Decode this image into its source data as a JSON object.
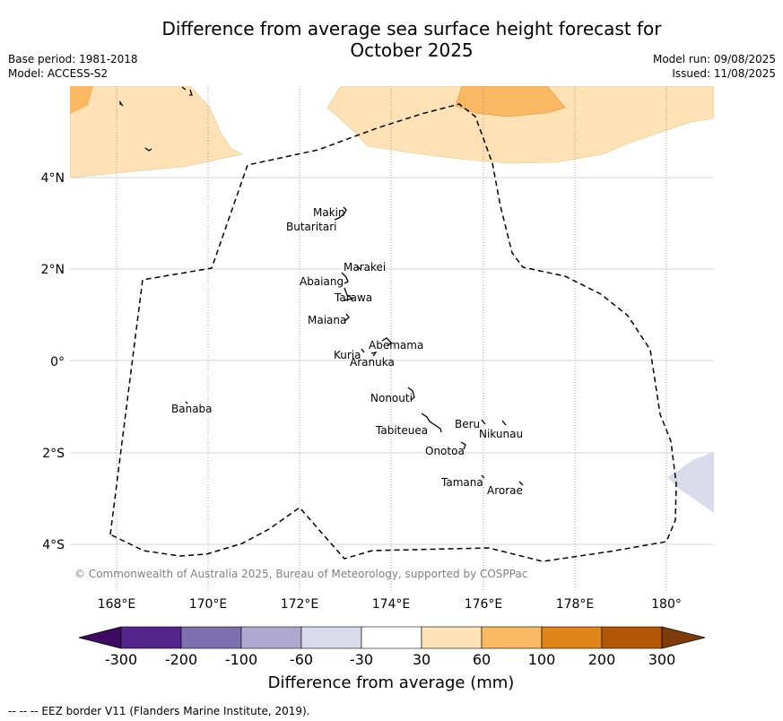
{
  "title": {
    "line1": "Difference from average sea surface height forecast for",
    "line2": "October 2025"
  },
  "meta_left": {
    "base_period": "Base period: 1981-2018",
    "model": "Model: ACCESS-S2"
  },
  "meta_right": {
    "model_run": "Model run: 09/08/2025",
    "issued": "Issued: 11/08/2025"
  },
  "map": {
    "copyright": "© Commonwealth of Australia 2025, Bureau of Meteorology, supported by COSPPac",
    "lon_ticks": [
      "168°E",
      "170°E",
      "172°E",
      "174°E",
      "176°E",
      "178°E",
      "180°"
    ],
    "lat_ticks": [
      "4°N",
      "2°N",
      "0°",
      "2°S",
      "4°S"
    ],
    "islands": {
      "makin": "Makin",
      "butaritari": "Butaritari",
      "marakei": "Marakei",
      "abaiang": "Abaiang",
      "tarawa": "Tarawa",
      "maiana": "Maiana",
      "abemama": "Abemama",
      "kuria": "Kuria",
      "aranuka": "Aranuka",
      "nonouti": "Nonouti",
      "banaba": "Banaba",
      "tabiteuea": "Tabiteuea",
      "beru": "Beru",
      "nikunau": "Nikunau",
      "onotoa": "Onotoa",
      "tamana": "Tamana",
      "arorae": "Arorae"
    }
  },
  "colorbar": {
    "label": "Difference from average (mm)",
    "ticks": [
      "-300",
      "-200",
      "-100",
      "-60",
      "-30",
      "30",
      "60",
      "100",
      "200",
      "300"
    ],
    "colors": [
      "#3f0a63",
      "#54258d",
      "#7e70ae",
      "#afa9cf",
      "#dadaeb",
      "#ffffff",
      "#fee1b5",
      "#fbb862",
      "#e08518",
      "#b35806",
      "#7f3b08"
    ]
  },
  "eez_note": "--  --  -- EEZ border V11 (Flanders Marine Institute, 2019)."
}
